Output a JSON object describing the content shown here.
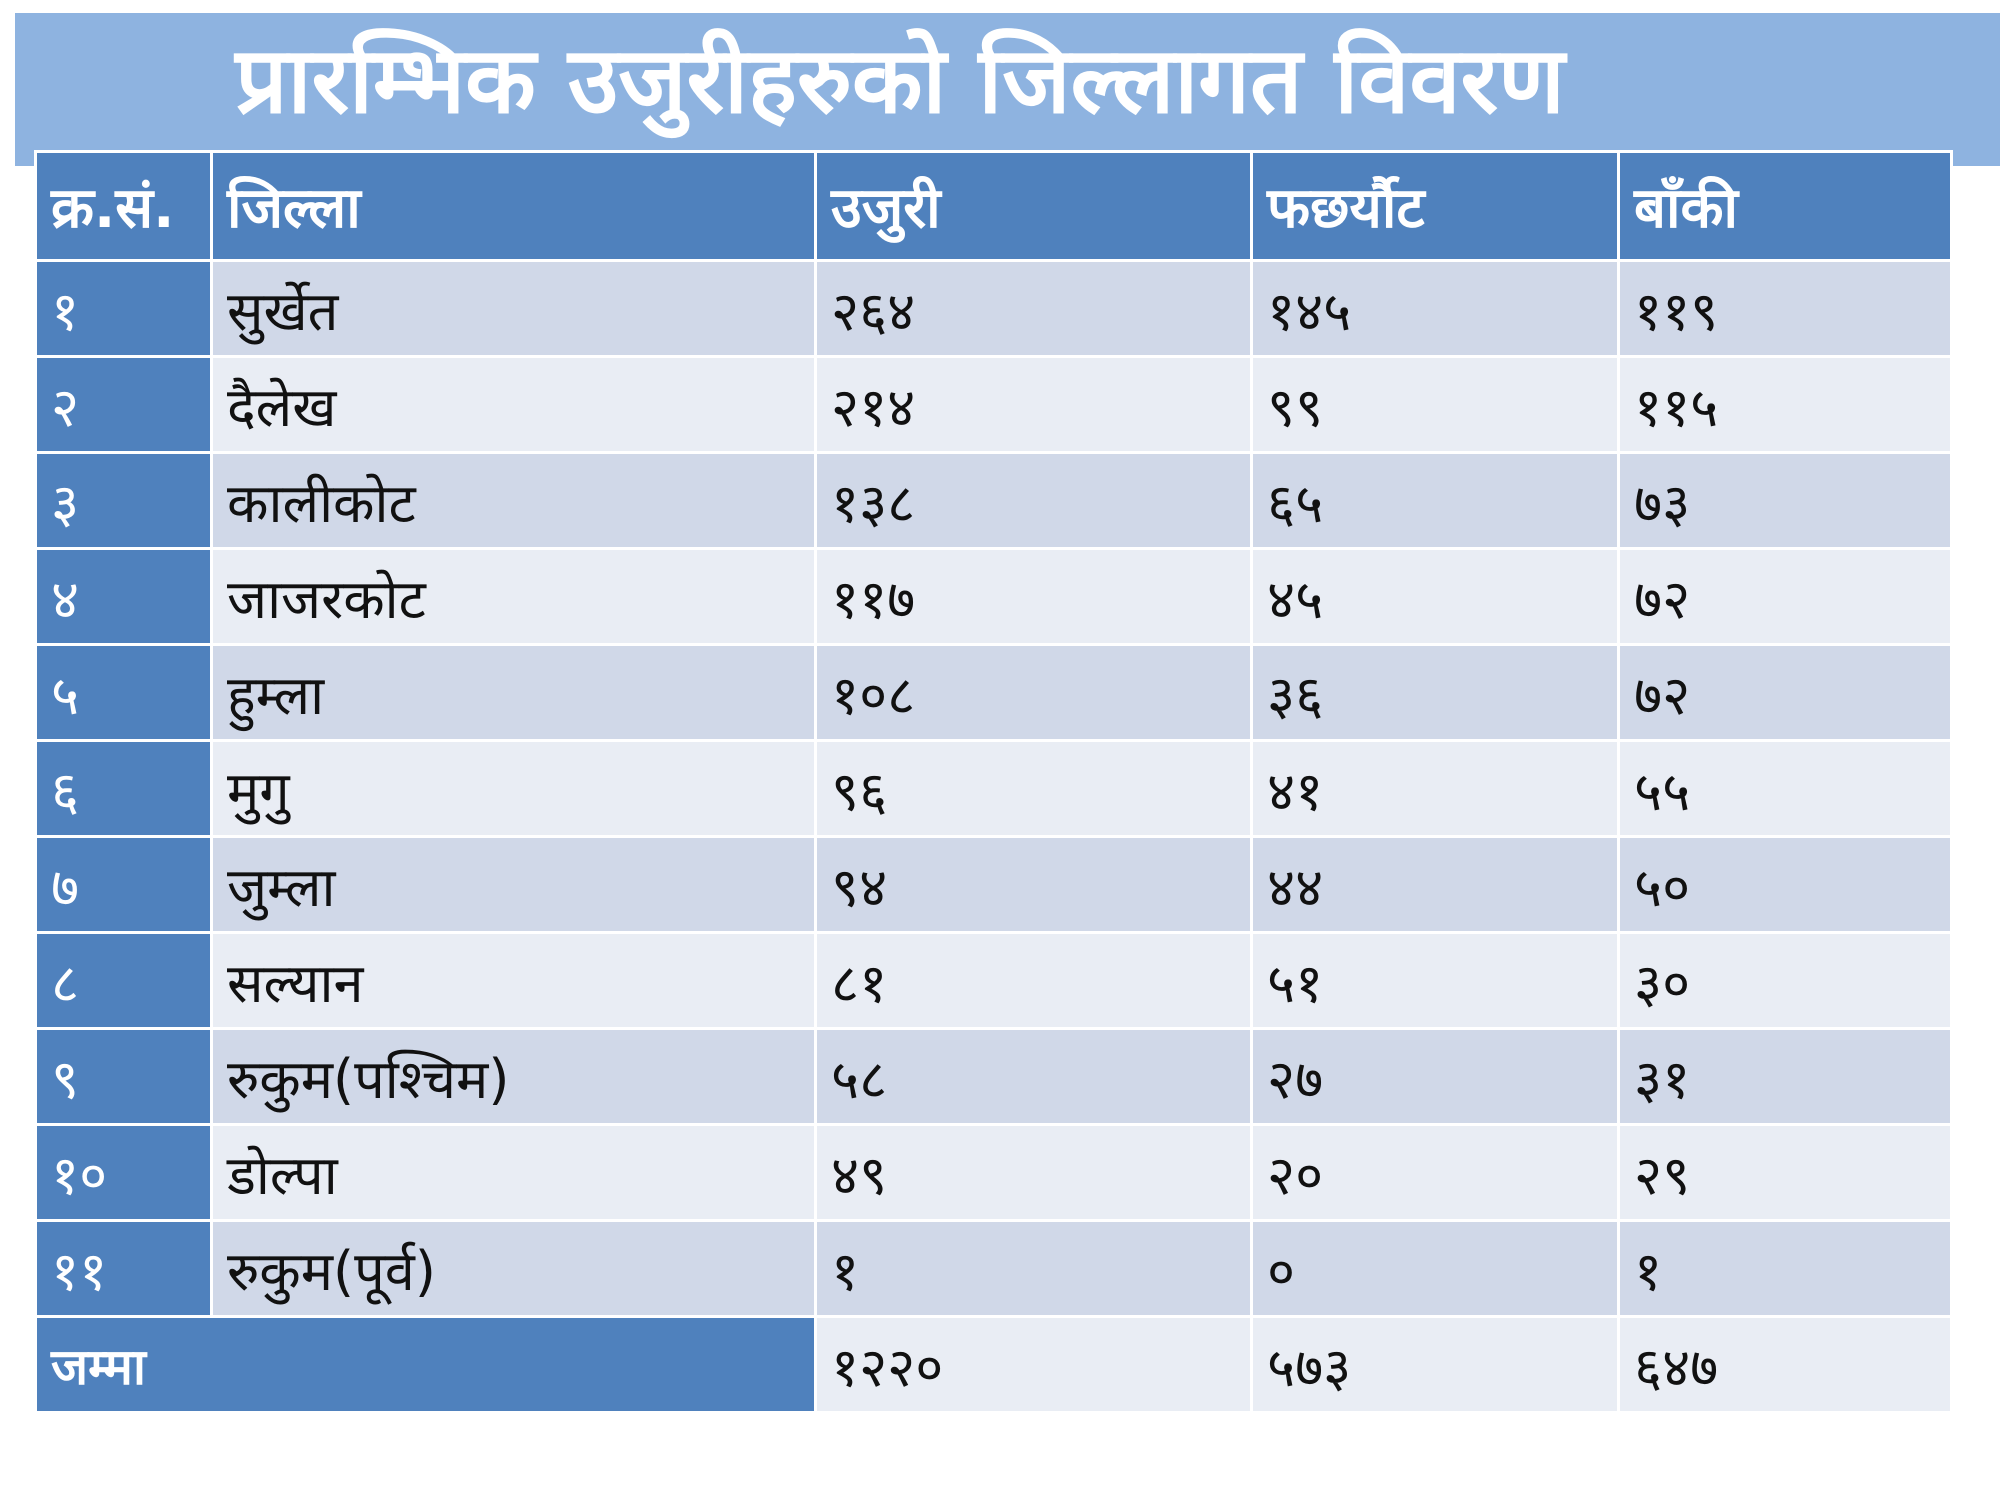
{
  "title": "प्रारम्भिक उजुरीहरुको जिल्लागत विवरण",
  "colors": {
    "header": "#4F81BD",
    "title_band": "#8EB3E0",
    "row_odd": "#D0D8E8",
    "row_even": "#E9EDF4"
  },
  "table": {
    "headers": [
      "क्र.सं.",
      "जिल्ला",
      "उजुरी",
      "फछर्यौट",
      "बाँकी"
    ],
    "rows": [
      [
        "१",
        "सुर्खेत",
        "२६४",
        "१४५",
        "११९"
      ],
      [
        "२",
        "दैलेख",
        "२१४",
        "९९",
        "११५"
      ],
      [
        "३",
        "कालीकोट",
        "१३८",
        "६५",
        "७३"
      ],
      [
        "४",
        "जाजरकोट",
        "११७",
        "४५",
        "७२"
      ],
      [
        "५",
        "हुम्ला",
        "१०८",
        "३६",
        "७२"
      ],
      [
        "६",
        "मुगु",
        "९६",
        "४१",
        "५५"
      ],
      [
        "७",
        "जुम्ला",
        "९४",
        "४४",
        "५०"
      ],
      [
        "८",
        "सल्यान",
        "८१",
        "५१",
        "३०"
      ],
      [
        "९",
        "रुकुम(पश्चिम)",
        "५८",
        "२७",
        "३१"
      ],
      [
        "१०",
        "डोल्पा",
        "४९",
        "२०",
        "२९"
      ],
      [
        "११",
        "रुकुम(पूर्व)",
        "१",
        "०",
        "१"
      ]
    ],
    "total": {
      "label": "जम्मा",
      "complaints": "१२२०",
      "resolved": "५७३",
      "pending": "६४७"
    }
  }
}
